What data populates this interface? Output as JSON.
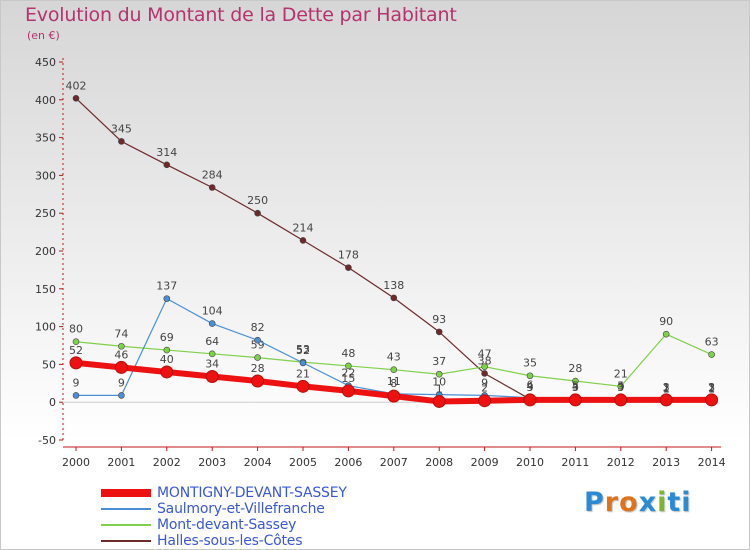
{
  "chart_data": {
    "type": "line",
    "title": "Evolution du Montant de la Dette par Habitant",
    "subtitle": "(en €)",
    "x": [
      "2000",
      "2001",
      "2002",
      "2003",
      "2004",
      "2005",
      "2006",
      "2007",
      "2008",
      "2009",
      "2010",
      "2011",
      "2012",
      "2013",
      "2014"
    ],
    "ylim": [
      -50,
      450
    ],
    "yticks": [
      -50,
      0,
      50,
      100,
      150,
      200,
      250,
      300,
      350,
      400,
      450
    ],
    "grid": false,
    "legend_position": "bottom-left",
    "series": [
      {
        "name": "Halles-sous-les-Côtes",
        "color": "#6e2a2a",
        "values": [
          402,
          345,
          314,
          284,
          250,
          214,
          178,
          138,
          93,
          38,
          4,
          4,
          4,
          2,
          2
        ]
      },
      {
        "name": "Mont-devant-Sassey",
        "color": "#7fd04a",
        "values": [
          80,
          74,
          69,
          64,
          59,
          53,
          48,
          43,
          37,
          47,
          35,
          28,
          21,
          90,
          63
        ]
      },
      {
        "name": "Saulmory-et-Villefranche",
        "color": "#4a8fd6",
        "values": [
          9,
          9,
          137,
          104,
          82,
          52,
          22,
          11,
          10,
          9,
          6,
          5,
          5,
          1,
          1
        ]
      },
      {
        "name": "MONTIGNY-DEVANT-SASSEY",
        "color": "#ee1111",
        "values": [
          52,
          46,
          40,
          34,
          28,
          21,
          15,
          8,
          1,
          2,
          3,
          3,
          3,
          3,
          3
        ]
      }
    ],
    "legend_order": [
      "MONTIGNY-DEVANT-SASSEY",
      "Saulmory-et-Villefranche",
      "Mont-devant-Sassey",
      "Halles-sous-les-Côtes"
    ]
  },
  "brand": {
    "letters": [
      "P",
      "r",
      "o",
      "x",
      "i",
      "t",
      "i"
    ],
    "colors": [
      "#2a8ad4",
      "#e0731a",
      "#e0731a",
      "#2a8ad4",
      "#7ab82a",
      "#2a8ad4",
      "#2a8ad4"
    ]
  }
}
